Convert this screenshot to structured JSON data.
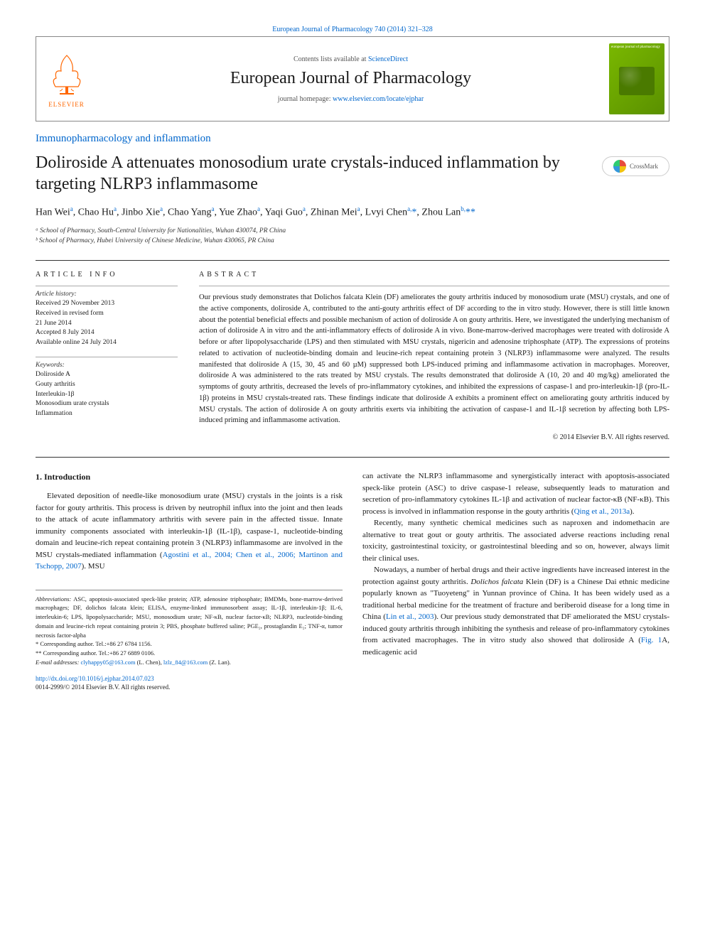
{
  "top_link": {
    "prefix": "",
    "journal": "European Journal of Pharmacology 740 (2014) 321–328"
  },
  "header": {
    "contents_prefix": "Contents lists available at ",
    "contents_link": "ScienceDirect",
    "journal_title": "European Journal of Pharmacology",
    "homepage_prefix": "journal homepage: ",
    "homepage_link": "www.elsevier.com/locate/ejphar",
    "elsevier_label": "ELSEVIER"
  },
  "section_label": "Immunopharmacology and inflammation",
  "title": "Doliroside A attenuates monosodium urate crystals-induced inflammation by targeting NLRP3 inflammasome",
  "crossmark_label": "CrossMark",
  "authors_html": "Han Wei<sup>a</sup>, Chao Hu<sup>a</sup>, Jinbo Xie<sup>a</sup>, Chao Yang<sup>a</sup>, Yue Zhao<sup>a</sup>, Yaqi Guo<sup>a</sup>, Zhinan Mei<sup>a</sup>, Lvyi Chen<sup>a,</sup><span class='star'>*</span>, Zhou Lan<sup>b,</sup><span class='star'>**</span>",
  "affiliations": [
    "ᵃ School of Pharmacy, South-Central University for Nationalities, Wuhan 430074, PR China",
    "ᵇ School of Pharmacy, Hubei University of Chinese Medicine, Wuhan 430065, PR China"
  ],
  "article_info": {
    "heading": "ARTICLE INFO",
    "history_label": "Article history:",
    "history": "Received 29 November 2013\nReceived in revised form\n21 June 2014\nAccepted 8 July 2014\nAvailable online 24 July 2014",
    "keywords_label": "Keywords:",
    "keywords": "Doliroside A\nGouty arthritis\nInterleukin-1β\nMonosodium urate crystals\nInflammation"
  },
  "abstract": {
    "heading": "ABSTRACT",
    "body": "Our previous study demonstrates that Dolichos falcata Klein (DF) ameliorates the gouty arthritis induced by monosodium urate (MSU) crystals, and one of the active components, doliroside A, contributed to the anti-gouty arthritis effect of DF according to the in vitro study. However, there is still little known about the potential beneficial effects and possible mechanism of action of doliroside A on gouty arthritis. Here, we investigated the underlying mechanism of action of doliroside A in vitro and the anti-inflammatory effects of doliroside A in vivo. Bone-marrow-derived macrophages were treated with doliroside A before or after lipopolysaccharide (LPS) and then stimulated with MSU crystals, nigericin and adenosine triphosphate (ATP). The expressions of proteins related to activation of nucleotide-binding domain and leucine-rich repeat containing protein 3 (NLRP3) inflammasome were analyzed. The results manifested that doliroside A (15, 30, 45 and 60 µM) suppressed both LPS-induced priming and inflammasome activation in macrophages. Moreover, doliroside A was administered to the rats treated by MSU crystals. The results demonstrated that doliroside A (10, 20 and 40 mg/kg) ameliorated the symptoms of gouty arthritis, decreased the levels of pro-inflammatory cytokines, and inhibited the expressions of caspase-1 and pro-interleukin-1β (pro-IL-1β) proteins in MSU crystals-treated rats. These findings indicate that doliroside A exhibits a prominent effect on ameliorating gouty arthritis induced by MSU crystals. The action of doliroside A on gouty arthritis exerts via inhibiting the activation of caspase-1 and IL-1β secretion by affecting both LPS-induced priming and inflammasome activation.",
    "copyright": "© 2014 Elsevier B.V. All rights reserved."
  },
  "body": {
    "intro_heading": "1. Introduction",
    "col1_p1": "Elevated deposition of needle-like monosodium urate (MSU) crystals in the joints is a risk factor for gouty arthritis. This process is driven by neutrophil influx into the joint and then leads to the attack of acute inflammatory arthritis with severe pain in the affected tissue. Innate immunity components associated with interleukin-1β (IL-1β), caspase-1, nucleotide-binding domain and leucine-rich repeat containing protein 3 (NLRP3) inflammasome are involved in the MSU crystals-mediated inflammation (",
    "col1_ref1": "Agostini et al., 2004; Chen et al., 2006; Martinon and Tschopp, 2007",
    "col1_p1_tail": "). MSU",
    "col2_p1": "can activate the NLRP3 inflammasome and synergistically interact with apoptosis-associated speck-like protein (ASC) to drive caspase-1 release, subsequently leads to maturation and secretion of pro-inflammatory cytokines IL-1β and activation of nuclear factor-κB (NF-κB). This process is involved in inflammation response in the gouty arthritis (",
    "col2_ref1": "Qing et al., 2013a",
    "col2_p1_tail": ").",
    "col2_p2": "Recently, many synthetic chemical medicines such as naproxen and indomethacin are alternative to treat gout or gouty arthritis. The associated adverse reactions including renal toxicity, gastrointestinal toxicity, or gastrointestinal bleeding and so on, however, always limit their clinical uses.",
    "col2_p3_a": "Nowadays, a number of herbal drugs and their active ingredients have increased interest in the protection against gouty arthritis. ",
    "col2_p3_b": "Dolichos falcata",
    "col2_p3_c": " Klein (DF) is a Chinese Dai ethnic medicine popularly known as \"Tuoyeteng\" in Yunnan province of China. It has been widely used as a traditional herbal medicine for the treatment of fracture and beriberoid disease for a long time in China (",
    "col2_ref2": "Lin et al., 2003",
    "col2_p3_d": "). Our previous study demonstrated that DF ameliorated the MSU crystals-induced gouty arthritis through inhibiting the synthesis and release of pro-inflammatory cytokines from activated macrophages. The in vitro study also showed that doliroside A (",
    "col2_ref3": "Fig. 1",
    "col2_p3_e": "A, medicagenic acid"
  },
  "footnotes": {
    "abbrev_label": "Abbreviations:",
    "abbrev_body": " ASC, apoptosis-associated speck-like protein; ATP, adenosine triphosphate; BMDMs, bone-marrow-derived macrophages; DF, dolichos falcata klein; ELISA, enzyme-linked immunosorbent assay; IL-1β, interleukin-1β; IL-6, interleukin-6; LPS, lipopolysaccharide; MSU, monosodium urate; NF-κB, nuclear factor-κB; NLRP3, nucleotide-binding domain and leucine-rich repeat containing protein 3; PBS, phosphate buffered saline; PGE₂, prostaglandin E₂; TNF-α, tumor necrosis factor-alpha",
    "corr1": "* Corresponding author. Tel.:+86 27 6784 1156.",
    "corr2": "** Corresponding author. Tel.:+86 27 6889 0106.",
    "email_label": "E-mail addresses: ",
    "email1": "clyhappy05@163.com",
    "email1_who": " (L. Chen), ",
    "email2": "lzlz_84@163.com",
    "email2_who": " (Z. Lan)."
  },
  "doi": {
    "url": "http://dx.doi.org/10.1016/j.ejphar.2014.07.023",
    "issn_line": "0014-2999/© 2014 Elsevier B.V. All rights reserved."
  },
  "colors": {
    "link": "#0066cc",
    "elsevier_orange": "#ff6600",
    "cover_green_a": "#7ab800",
    "cover_green_b": "#5a9000",
    "border": "#888888",
    "section_border": "#aaaaaa"
  }
}
